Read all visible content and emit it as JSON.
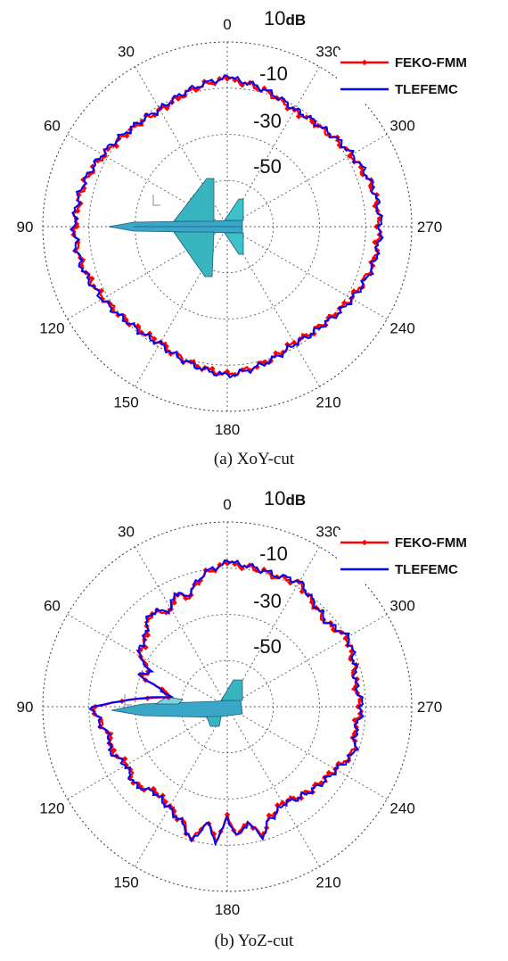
{
  "chart_data": [
    {
      "type": "polar-line",
      "caption": "(a) XoY-cut",
      "angle_direction": "counterclockwise, 0 at top",
      "angle_tick_labels": [
        "0",
        "30",
        "60",
        "90",
        "120",
        "150",
        "180",
        "210",
        "240",
        "270",
        "300",
        "330"
      ],
      "radial_tick_labels": [
        "10",
        "-10",
        "-30",
        "-50"
      ],
      "radial_unit": "dB",
      "rlim": [
        -70,
        10
      ],
      "grid": true,
      "legend_position": "top-right",
      "series": [
        {
          "name": "FEKO-FMM",
          "color": "#ff0000",
          "marker": "diamond",
          "angles": [
            0,
            15,
            30,
            45,
            60,
            75,
            90,
            105,
            120,
            135,
            150,
            165,
            180,
            195,
            210,
            225,
            240,
            255,
            270,
            285,
            300,
            315,
            330,
            345
          ],
          "values": [
            -6,
            -9,
            -12,
            -11,
            -8,
            -5,
            -4,
            -5,
            -8,
            -11,
            -12,
            -9,
            -6,
            -9,
            -12,
            -11,
            -8,
            -5,
            -4,
            -5,
            -8,
            -11,
            -12,
            -9
          ]
        },
        {
          "name": "TLEFEMC",
          "color": "#0000ff",
          "angles": [
            0,
            15,
            30,
            45,
            60,
            75,
            90,
            105,
            120,
            135,
            150,
            165,
            180,
            195,
            210,
            225,
            240,
            255,
            270,
            285,
            300,
            315,
            330,
            345
          ],
          "values": [
            -5.5,
            -8.5,
            -11.5,
            -10.5,
            -7.5,
            -4.5,
            -3.5,
            -4.5,
            -7.5,
            -10.5,
            -11.5,
            -8.5,
            -5.5,
            -8.5,
            -11.5,
            -10.5,
            -7.5,
            -4.5,
            -3.5,
            -4.5,
            -7.5,
            -10.5,
            -11.5,
            -8.5
          ]
        }
      ]
    },
    {
      "type": "polar-line",
      "caption": "(b) YoZ-cut",
      "angle_direction": "counterclockwise, 0 at top",
      "angle_tick_labels": [
        "0",
        "30",
        "60",
        "90",
        "120",
        "150",
        "180",
        "210",
        "240",
        "270",
        "300",
        "330"
      ],
      "radial_tick_labels": [
        "10",
        "-10",
        "-30",
        "-50"
      ],
      "radial_unit": "dB",
      "rlim": [
        -70,
        10
      ],
      "grid": true,
      "legend_position": "top-right",
      "series": [
        {
          "name": "FEKO-FMM",
          "color": "#ff0000",
          "marker": "diamond",
          "angles": [
            0,
            10,
            20,
            25,
            30,
            40,
            50,
            60,
            65,
            70,
            75,
            80,
            85,
            90,
            95,
            100,
            105,
            110,
            120,
            130,
            140,
            150,
            160,
            165,
            170,
            175,
            180,
            185,
            190,
            195,
            200,
            210,
            220,
            230,
            240,
            250,
            260,
            270,
            280,
            290,
            300,
            310,
            320,
            330,
            340,
            350
          ],
          "values": [
            -8,
            -12,
            -20,
            -16,
            -22,
            -18,
            -24,
            -26,
            -34,
            -30,
            -40,
            -46,
            -32,
            -12,
            -14,
            -16,
            -18,
            -16,
            -20,
            -18,
            -22,
            -20,
            -16,
            -10,
            -20,
            -12,
            -22,
            -14,
            -20,
            -12,
            -18,
            -22,
            -20,
            -18,
            -16,
            -12,
            -14,
            -12,
            -14,
            -12,
            -10,
            -14,
            -12,
            -8,
            -10,
            -9
          ]
        },
        {
          "name": "TLEFEMC",
          "color": "#0000ff",
          "angles": [
            0,
            10,
            20,
            25,
            30,
            40,
            50,
            60,
            65,
            70,
            75,
            80,
            85,
            90,
            95,
            100,
            105,
            110,
            120,
            130,
            140,
            150,
            160,
            165,
            170,
            175,
            180,
            185,
            190,
            195,
            200,
            210,
            220,
            230,
            240,
            250,
            260,
            270,
            280,
            290,
            300,
            310,
            320,
            330,
            340,
            350
          ],
          "values": [
            -7.5,
            -11.5,
            -19.5,
            -15.5,
            -21.5,
            -17.5,
            -23.5,
            -25.5,
            -33.5,
            -29.5,
            -39.5,
            -45.5,
            -31.5,
            -11.5,
            -13.5,
            -15.5,
            -17.5,
            -15.5,
            -19.5,
            -17.5,
            -21.5,
            -19.5,
            -15.5,
            -9.5,
            -19.5,
            -11.5,
            -21.5,
            -13.5,
            -19.5,
            -11.5,
            -17.5,
            -21.5,
            -19.5,
            -17.5,
            -15.5,
            -11.5,
            -13.5,
            -11.5,
            -13.5,
            -11.5,
            -9.5,
            -13.5,
            -11.5,
            -7.5,
            -9.5,
            -8.5
          ]
        }
      ]
    }
  ]
}
